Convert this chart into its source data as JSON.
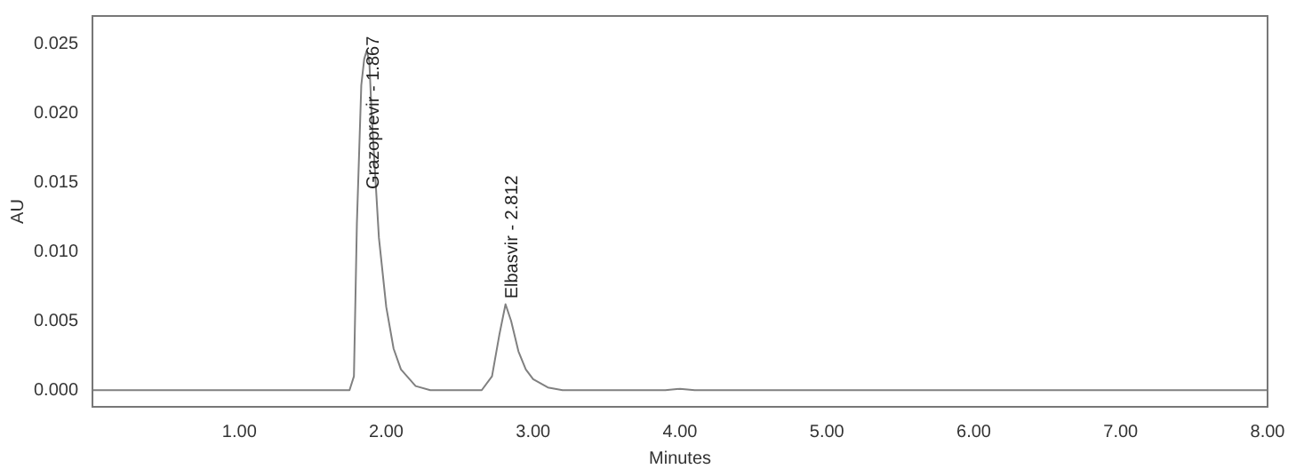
{
  "chart_data": {
    "type": "line",
    "xlabel": "Minutes",
    "ylabel": "AU",
    "x": [
      0,
      1.0,
      1.75,
      1.78,
      1.8,
      1.83,
      1.85,
      1.867,
      1.885,
      1.9,
      1.95,
      2.0,
      2.05,
      2.1,
      2.2,
      2.3,
      2.65,
      2.72,
      2.77,
      2.812,
      2.85,
      2.9,
      2.95,
      3.0,
      3.1,
      3.2,
      3.9,
      4.0,
      4.1,
      8.0
    ],
    "series": [
      {
        "color": "#808080",
        "values": [
          0,
          0,
          0,
          0.001,
          0.012,
          0.022,
          0.0239,
          0.0245,
          0.0237,
          0.02,
          0.011,
          0.006,
          0.003,
          0.0015,
          0.0003,
          0,
          0,
          0.001,
          0.004,
          0.0062,
          0.005,
          0.0028,
          0.0015,
          0.0008,
          0.0002,
          0,
          0,
          0.0001,
          0,
          0
        ]
      }
    ],
    "xlim": [
      0,
      8
    ],
    "ylim": [
      -0.0012,
      0.027
    ],
    "xticks": [
      {
        "value": 1,
        "label": "1.00"
      },
      {
        "value": 2,
        "label": "2.00"
      },
      {
        "value": 3,
        "label": "3.00"
      },
      {
        "value": 4,
        "label": "4.00"
      },
      {
        "value": 5,
        "label": "5.00"
      },
      {
        "value": 6,
        "label": "6.00"
      },
      {
        "value": 7,
        "label": "7.00"
      },
      {
        "value": 8,
        "label": "8.00"
      }
    ],
    "yticks": [
      {
        "value": 0,
        "label": "0.000"
      },
      {
        "value": 0.005,
        "label": "0.005"
      },
      {
        "value": 0.01,
        "label": "0.010"
      },
      {
        "value": 0.015,
        "label": "0.015"
      },
      {
        "value": 0.02,
        "label": "0.020"
      },
      {
        "value": 0.025,
        "label": "0.025"
      }
    ],
    "annotations": [
      {
        "text": "Grazoprevir - 1.867",
        "x": 1.867,
        "y": 0.0145
      },
      {
        "text": "Elbasvir - 2.812",
        "x": 2.812,
        "y": 0.0066
      }
    ],
    "grid": false,
    "legend": false,
    "marker": "none",
    "line_style": "solid"
  }
}
